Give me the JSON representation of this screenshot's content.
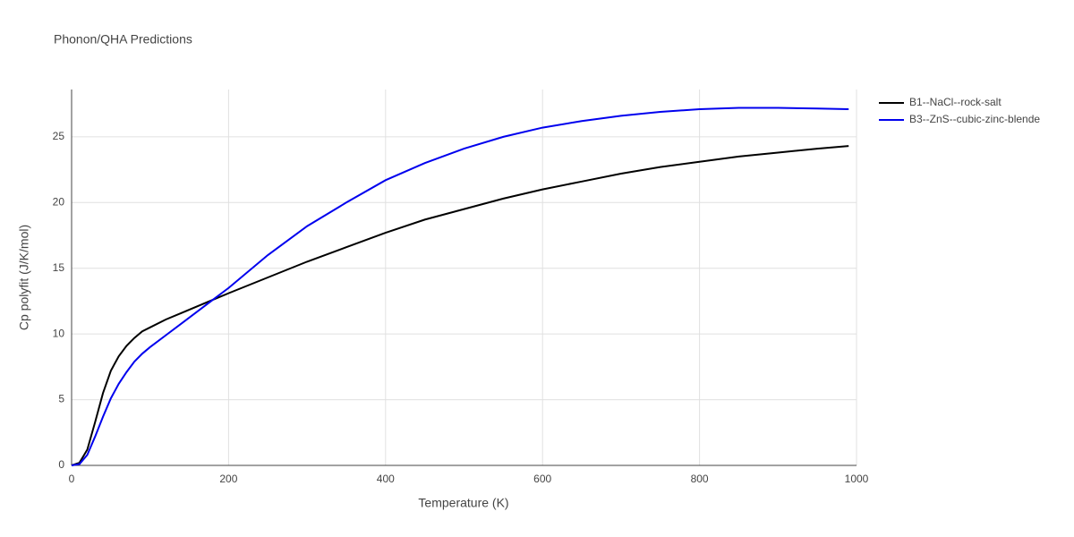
{
  "chart_data": {
    "type": "line",
    "title": "Phonon/QHA Predictions",
    "x_label": "Temperature (K)",
    "y_label": "Cp polyfit (J/K/mol)",
    "x": [
      0,
      10,
      20,
      30,
      40,
      50,
      60,
      70,
      80,
      90,
      100,
      120,
      140,
      160,
      180,
      200,
      250,
      300,
      350,
      400,
      450,
      500,
      550,
      600,
      650,
      700,
      750,
      800,
      850,
      900,
      950,
      990
    ],
    "series": [
      {
        "name": "B1--NaCl--rock-salt",
        "color": "#000000",
        "values": [
          0,
          0.2,
          1.2,
          3.3,
          5.5,
          7.2,
          8.3,
          9.1,
          9.7,
          10.2,
          10.5,
          11.1,
          11.6,
          12.1,
          12.6,
          13.1,
          14.3,
          15.5,
          16.6,
          17.7,
          18.7,
          19.5,
          20.3,
          21.0,
          21.6,
          22.2,
          22.7,
          23.1,
          23.5,
          23.8,
          24.1,
          24.3
        ]
      },
      {
        "name": "B3--ZnS--cubic-zinc-blende",
        "color": "#0000ee",
        "values": [
          0,
          0.1,
          0.8,
          2.2,
          3.7,
          5.1,
          6.2,
          7.1,
          7.9,
          8.5,
          9.0,
          9.9,
          10.8,
          11.7,
          12.6,
          13.5,
          16.0,
          18.2,
          20.0,
          21.7,
          23.0,
          24.1,
          25.0,
          25.7,
          26.2,
          26.6,
          26.9,
          27.1,
          27.2,
          27.2,
          27.15,
          27.1
        ]
      }
    ],
    "xlim": [
      0,
      1000
    ],
    "xticks": [
      0,
      200,
      400,
      600,
      800,
      1000
    ],
    "ylim": [
      0,
      28.6
    ],
    "yticks": [
      0,
      5,
      10,
      15,
      20,
      25
    ],
    "grid": true,
    "legend": "outside-right"
  }
}
